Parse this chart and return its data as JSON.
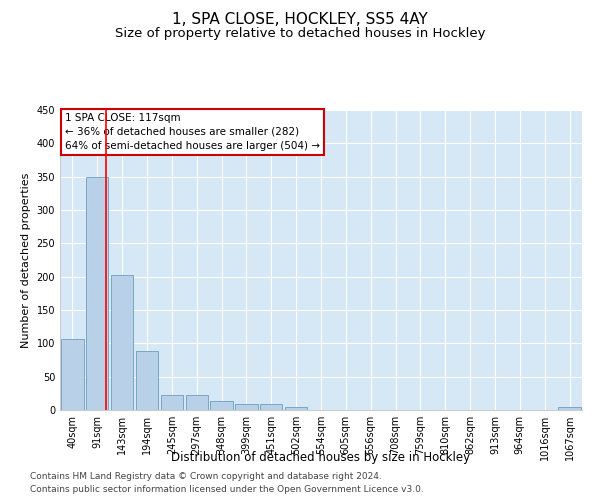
{
  "title": "1, SPA CLOSE, HOCKLEY, SS5 4AY",
  "subtitle": "Size of property relative to detached houses in Hockley",
  "xlabel": "Distribution of detached houses by size in Hockley",
  "ylabel": "Number of detached properties",
  "categories": [
    "40sqm",
    "91sqm",
    "143sqm",
    "194sqm",
    "245sqm",
    "297sqm",
    "348sqm",
    "399sqm",
    "451sqm",
    "502sqm",
    "554sqm",
    "605sqm",
    "656sqm",
    "708sqm",
    "759sqm",
    "810sqm",
    "862sqm",
    "913sqm",
    "964sqm",
    "1016sqm",
    "1067sqm"
  ],
  "values": [
    107,
    350,
    203,
    88,
    22,
    22,
    13,
    9,
    9,
    5,
    0,
    0,
    0,
    0,
    0,
    0,
    0,
    0,
    0,
    0,
    5
  ],
  "bar_color": "#b8d0e8",
  "bar_edge_color": "#6a9fc0",
  "background_color": "#d6e8f5",
  "grid_color": "#ffffff",
  "ylim": [
    0,
    450
  ],
  "yticks": [
    0,
    50,
    100,
    150,
    200,
    250,
    300,
    350,
    400,
    450
  ],
  "red_line_x": 1.35,
  "annotation_line1": "1 SPA CLOSE: 117sqm",
  "annotation_line2": "← 36% of detached houses are smaller (282)",
  "annotation_line3": "64% of semi-detached houses are larger (504) →",
  "annotation_box_color": "#ffffff",
  "annotation_box_edge_color": "#cc0000",
  "footer_line1": "Contains HM Land Registry data © Crown copyright and database right 2024.",
  "footer_line2": "Contains public sector information licensed under the Open Government Licence v3.0.",
  "title_fontsize": 11,
  "subtitle_fontsize": 9.5,
  "xlabel_fontsize": 8.5,
  "ylabel_fontsize": 8,
  "tick_fontsize": 7,
  "annotation_fontsize": 7.5,
  "footer_fontsize": 6.5
}
